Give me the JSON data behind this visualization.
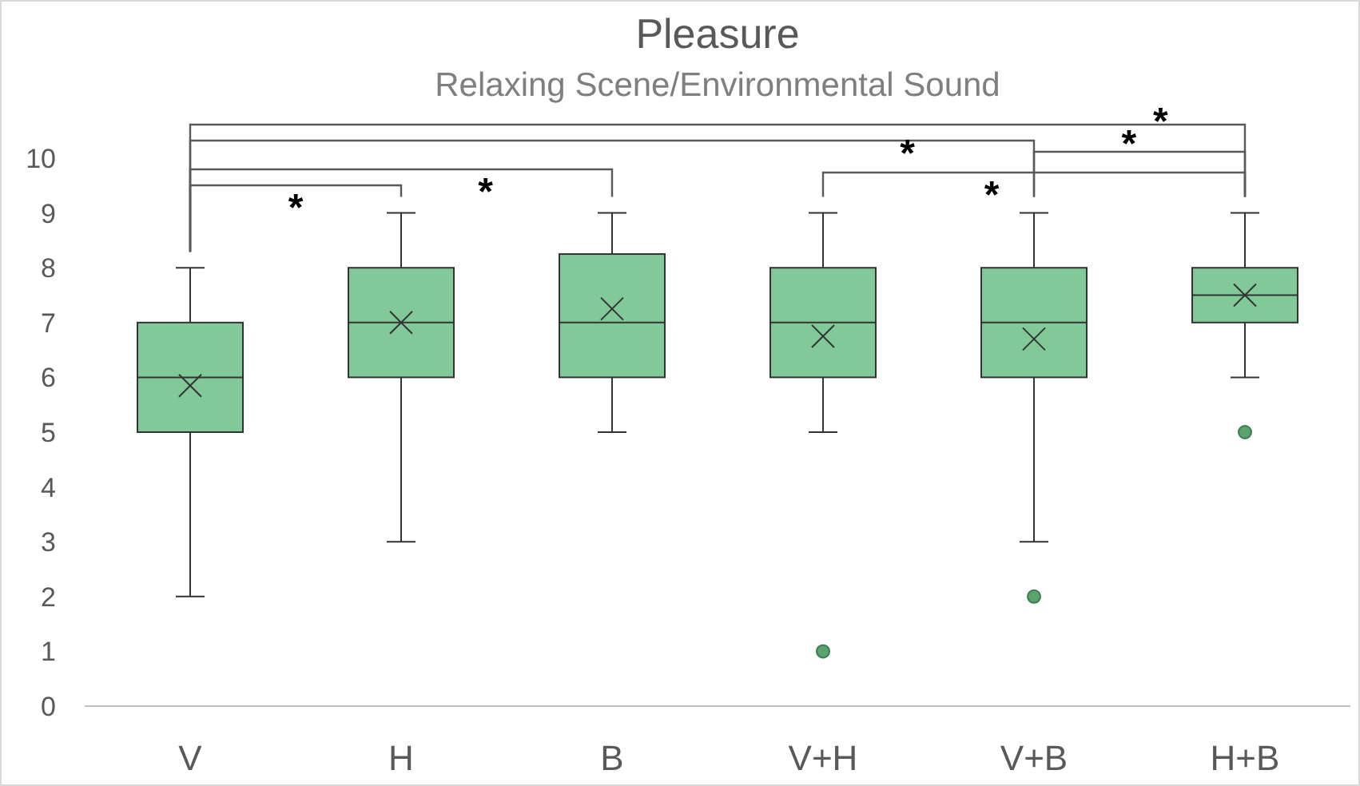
{
  "chart_data": {
    "type": "box",
    "title": "Pleasure",
    "subtitle": "Relaxing Scene/Environmental Sound",
    "categories": [
      "V",
      "H",
      "B",
      "V+H",
      "V+B",
      "H+B"
    ],
    "color": "#82c99a",
    "boxes": [
      {
        "low": 2,
        "q1": 5,
        "median": 6,
        "q3": 7,
        "high": 8,
        "mean": 5.85
      },
      {
        "low": 3,
        "q1": 6,
        "median": 7,
        "q3": 8,
        "high": 9,
        "mean": 7
      },
      {
        "low": 5,
        "q1": 6,
        "median": 7,
        "q3": 8.25,
        "high": 9,
        "mean": 7.25
      },
      {
        "low": 5,
        "q1": 6,
        "median": 7,
        "q3": 8,
        "high": 9,
        "mean": 6.75,
        "outliers": [
          1
        ]
      },
      {
        "low": 3,
        "q1": 6,
        "median": 7,
        "q3": 8,
        "high": 9,
        "mean": 6.7,
        "outliers": [
          2
        ]
      },
      {
        "low": 6,
        "q1": 7,
        "median": 7.5,
        "q3": 8,
        "high": 9,
        "mean": 7.5,
        "outliers": [
          5
        ]
      }
    ],
    "ylim": [
      0,
      10
    ],
    "yticks": [
      0,
      1,
      2,
      3,
      4,
      5,
      6,
      7,
      8,
      9,
      10
    ],
    "grid": false,
    "annotations": [
      "*",
      "*",
      "*",
      "*",
      "*",
      "*"
    ]
  }
}
